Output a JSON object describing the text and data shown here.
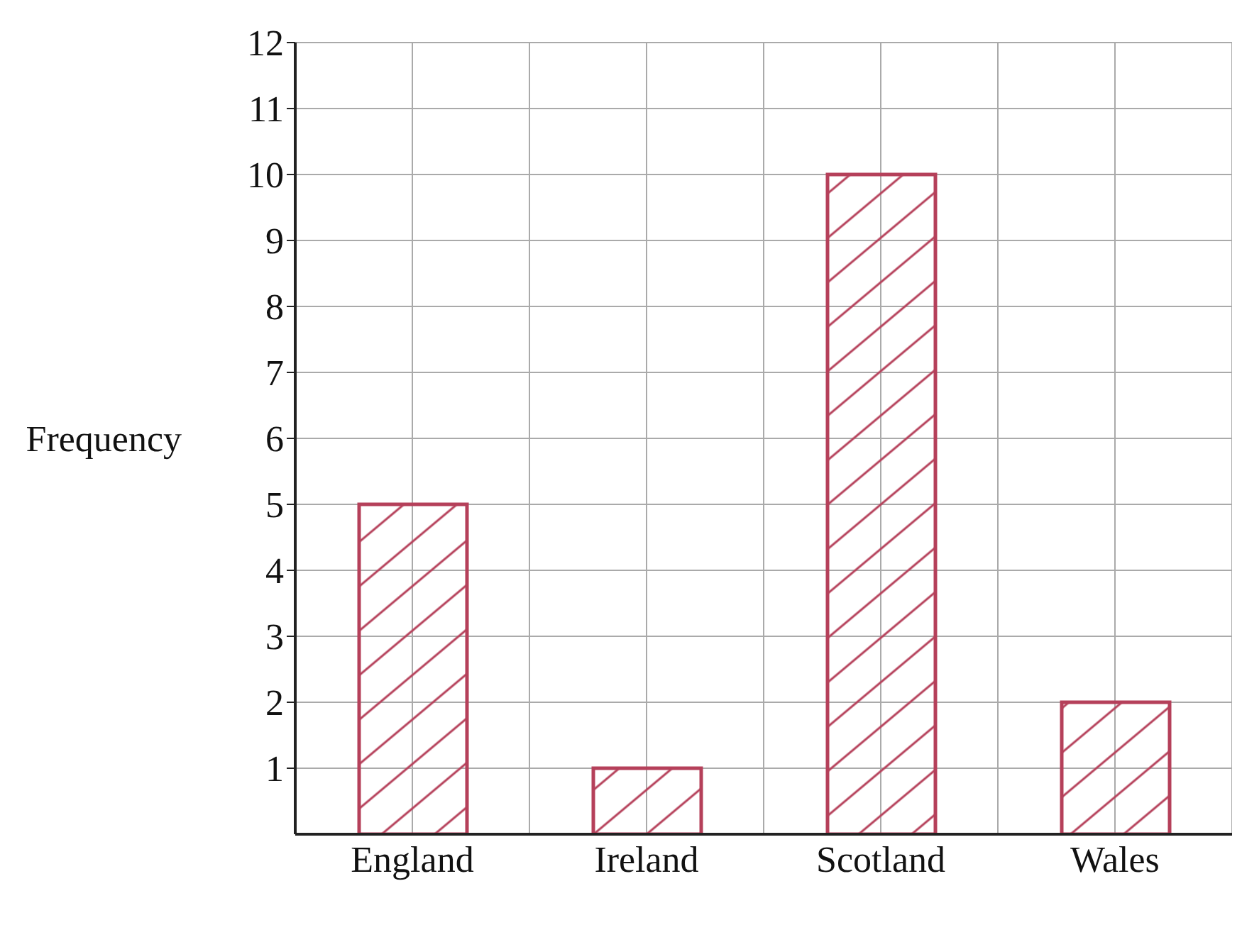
{
  "chart_data": {
    "type": "bar",
    "ylabel": "Frequency",
    "categories": [
      "England",
      "Ireland",
      "Scotland",
      "Wales"
    ],
    "series": [
      {
        "color": "#b5405a",
        "values": [
          5,
          1,
          10,
          2
        ]
      }
    ],
    "ylim": [
      0,
      12
    ],
    "yticks": [
      1,
      2,
      3,
      4,
      5,
      6,
      7,
      8,
      9,
      10,
      11,
      12
    ],
    "grid": true
  }
}
